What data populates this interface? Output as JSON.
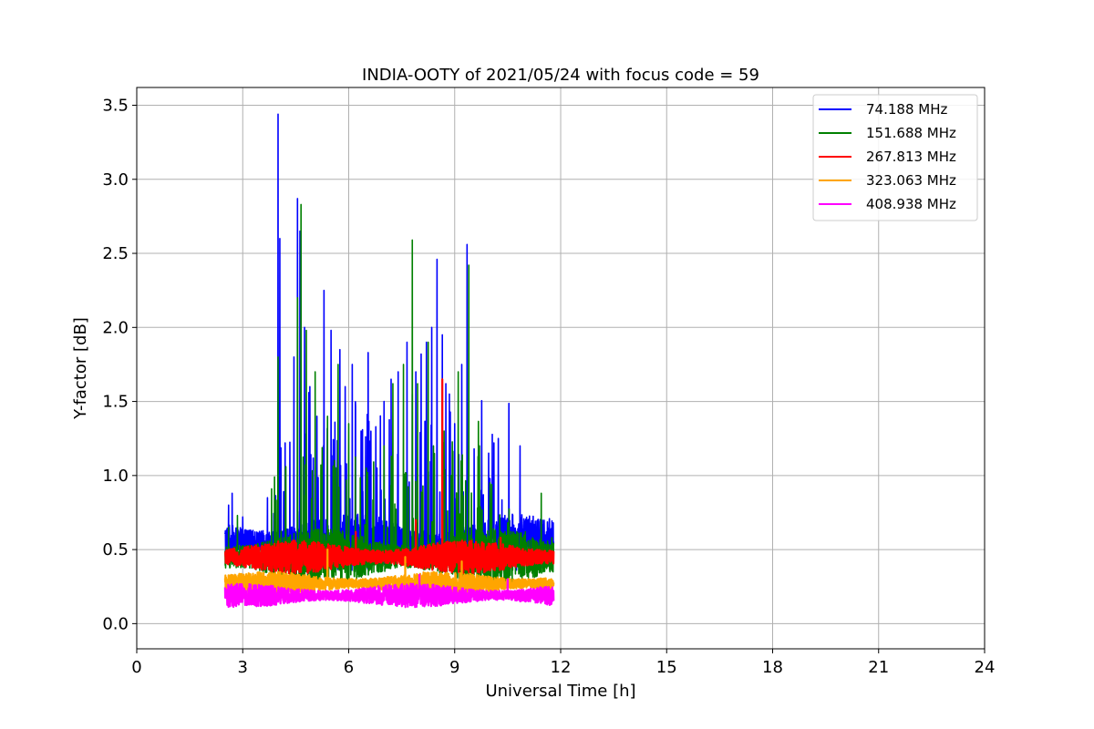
{
  "chart_data": {
    "type": "line",
    "title": "INDIA-OOTY of 2021/05/24 with focus code = 59",
    "xlabel": "Universal Time [h]",
    "ylabel": "Y-factor [dB]",
    "xlim": [
      0,
      24
    ],
    "ylim": [
      -0.17,
      3.62
    ],
    "xticks": [
      "0",
      "3",
      "6",
      "9",
      "12",
      "15",
      "18",
      "21",
      "24"
    ],
    "yticks": [
      "0.0",
      "0.5",
      "1.0",
      "1.5",
      "2.0",
      "2.5",
      "3.0",
      "3.5"
    ],
    "grid": true,
    "legend_position": "top-right",
    "time_range": [
      2.5,
      11.8
    ],
    "series": [
      {
        "name": " 74.188 MHz",
        "color": "#0000ff",
        "baseline": 0.55,
        "noise": 0.12,
        "peaks": [
          [
            2.6,
            0.8
          ],
          [
            2.7,
            0.88
          ],
          [
            3.0,
            0.72
          ],
          [
            3.7,
            0.85
          ],
          [
            4.0,
            3.44
          ],
          [
            4.05,
            2.6
          ],
          [
            4.2,
            1.22
          ],
          [
            4.45,
            1.8
          ],
          [
            4.55,
            2.87
          ],
          [
            4.62,
            2.65
          ],
          [
            4.75,
            2.0
          ],
          [
            4.9,
            1.6
          ],
          [
            5.1,
            1.4
          ],
          [
            5.3,
            2.25
          ],
          [
            5.5,
            1.98
          ],
          [
            5.75,
            1.85
          ],
          [
            5.9,
            1.6
          ],
          [
            6.1,
            1.75
          ],
          [
            6.35,
            1.3
          ],
          [
            6.55,
            1.83
          ],
          [
            6.8,
            1.05
          ],
          [
            7.0,
            1.5
          ],
          [
            7.2,
            1.65
          ],
          [
            7.4,
            1.7
          ],
          [
            7.65,
            1.9
          ],
          [
            7.8,
            1.55
          ],
          [
            7.9,
            1.7
          ],
          [
            8.05,
            1.82
          ],
          [
            8.2,
            1.9
          ],
          [
            8.35,
            2.0
          ],
          [
            8.5,
            2.46
          ],
          [
            8.65,
            1.95
          ],
          [
            8.75,
            1.62
          ],
          [
            8.85,
            1.55
          ],
          [
            9.0,
            1.35
          ],
          [
            9.2,
            1.75
          ],
          [
            9.35,
            2.56
          ],
          [
            9.55,
            1.18
          ],
          [
            9.75,
            0.9
          ],
          [
            10.0,
            0.98
          ],
          [
            10.3,
            0.7
          ],
          [
            10.6,
            0.65
          ],
          [
            10.85,
            1.2
          ],
          [
            11.05,
            0.7
          ],
          [
            11.4,
            0.55
          ],
          [
            11.7,
            0.62
          ]
        ]
      },
      {
        "name": "151.688 MHz",
        "color": "#008000",
        "baseline": 0.45,
        "noise": 0.12,
        "peaks": [
          [
            2.6,
            0.65
          ],
          [
            2.85,
            0.73
          ],
          [
            4.0,
            1.8
          ],
          [
            4.55,
            2.2
          ],
          [
            4.65,
            2.83
          ],
          [
            4.8,
            1.98
          ],
          [
            5.05,
            1.7
          ],
          [
            5.4,
            1.4
          ],
          [
            5.7,
            1.75
          ],
          [
            6.0,
            1.35
          ],
          [
            6.5,
            1.05
          ],
          [
            7.0,
            1.2
          ],
          [
            7.25,
            1.62
          ],
          [
            7.55,
            1.75
          ],
          [
            7.8,
            2.59
          ],
          [
            7.95,
            1.62
          ],
          [
            8.25,
            1.9
          ],
          [
            8.4,
            1.2
          ],
          [
            8.7,
            1.3
          ],
          [
            8.9,
            1.0
          ],
          [
            9.1,
            1.7
          ],
          [
            9.4,
            2.42
          ],
          [
            9.7,
            1.2
          ],
          [
            10.0,
            0.95
          ],
          [
            10.5,
            0.68
          ],
          [
            11.0,
            0.62
          ],
          [
            11.45,
            0.88
          ],
          [
            11.75,
            0.58
          ]
        ]
      },
      {
        "name": "267.813 MHz",
        "color": "#ff0000",
        "baseline": 0.45,
        "noise": 0.07,
        "peaks": [
          [
            8.65,
            1.65
          ],
          [
            7.9,
            0.7
          ],
          [
            6.2,
            0.62
          ],
          [
            10.3,
            0.58
          ]
        ]
      },
      {
        "name": "323.063 MHz",
        "color": "#ffa500",
        "baseline": 0.27,
        "noise": 0.05,
        "peaks": [
          [
            5.4,
            0.5
          ],
          [
            7.6,
            0.45
          ],
          [
            9.2,
            0.42
          ]
        ]
      },
      {
        "name": "408.938 MHz",
        "color": "#ff00ff",
        "baseline": 0.19,
        "noise": 0.05,
        "peaks": [
          [
            8.0,
            0.33
          ],
          [
            10.5,
            0.3
          ]
        ]
      }
    ]
  }
}
